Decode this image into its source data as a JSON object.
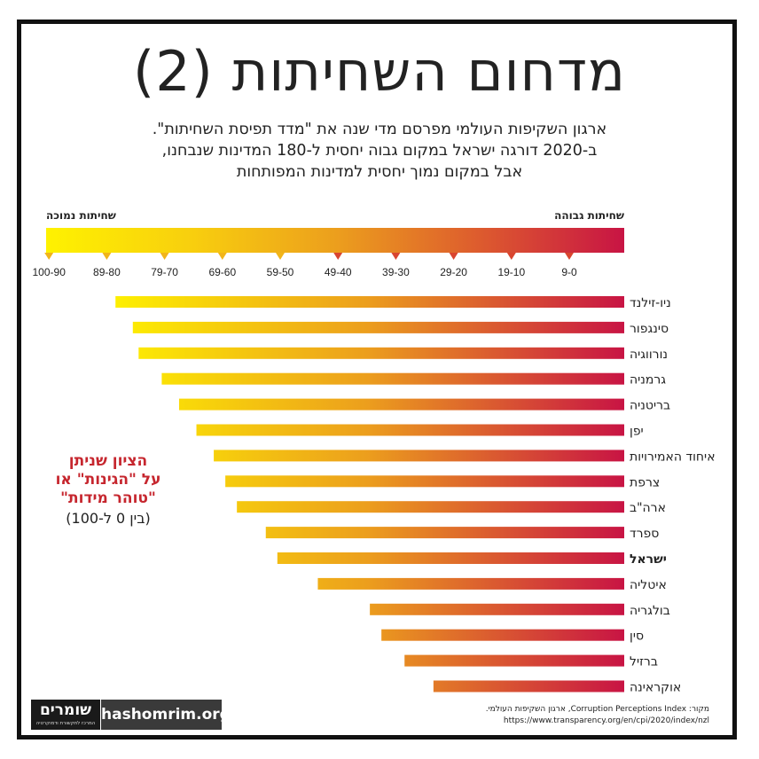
{
  "title": "מדחום השחיתות (2)",
  "subtitle_lines": [
    "ארגון השקיפות העולמי מפרסם מדי שנה את \"מדד תפיסת השחיתות\".",
    "ב-2020 דורגה ישראל במקום גבוה יחסית ל-180 המדינות שנבחנו,",
    "אבל במקום נמוך יחסית למדינות המפותחות"
  ],
  "scale": {
    "high_label": "שחיתות גבוהה",
    "low_label": "שחיתות נמוכה",
    "ticks": [
      "0-9",
      "10-19",
      "20-29",
      "30-39",
      "40-49",
      "50-59",
      "60-69",
      "70-79",
      "80-89",
      "90-100"
    ],
    "colors": {
      "high": "#c81444",
      "mid": "#ec9f1d",
      "low": "#fef200"
    }
  },
  "annotation": {
    "line1": "הציון שניתן",
    "line2": "על \"הגינות\" או",
    "line3": "\"טוהר מידות\"",
    "range": "(בין 0 ל-100)",
    "color": "#c6262e"
  },
  "chart_data": {
    "type": "bar",
    "orientation": "horizontal",
    "title": "מדחום השחיתות (2)",
    "categories": [
      "ניו-זילנד",
      "סינגפור",
      "נורווגיה",
      "גרמניה",
      "בריטניה",
      "יפן",
      "איחוד האמירויות",
      "צרפת",
      "ארה\"ב",
      "ספרד",
      "ישראל",
      "איטליה",
      "בולגריה",
      "סין",
      "ברזיל",
      "אוקראינה"
    ],
    "values": [
      88,
      85,
      84,
      80,
      77,
      74,
      71,
      69,
      67,
      62,
      60,
      53,
      44,
      42,
      38,
      33
    ],
    "highlight": "ישראל",
    "xlim": [
      0,
      100
    ],
    "x_direction": "right-to-left",
    "ylabel": "",
    "xlabel": ""
  },
  "footer": {
    "logo": "שומרים",
    "logo_tagline": "המרכז לתקשורת ודמוקרטיה",
    "site": "hashomrim.org",
    "source_line": "מקור: Corruption Perceptions Index, ארגון השקיפות העולמי.",
    "source_url": "https://www.transparency.org/en/cpi/2020/index/nzl"
  }
}
